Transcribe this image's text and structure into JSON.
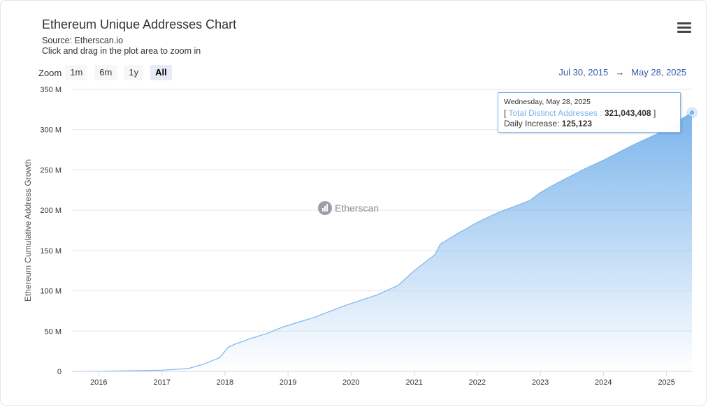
{
  "header": {
    "title": "Ethereum Unique Addresses Chart",
    "source": "Source: Etherscan.io",
    "hint": "Click and drag in the plot area to zoom in"
  },
  "menu_icon": "hamburger-menu-icon",
  "zoom": {
    "label": "Zoom",
    "buttons": [
      "1m",
      "6m",
      "1y",
      "All"
    ],
    "active": "All"
  },
  "range": {
    "from": "Jul 30, 2015",
    "arrow": "→",
    "to": "May 28, 2025"
  },
  "watermark": {
    "text": "Etherscan",
    "icon": "etherscan-logo-icon"
  },
  "tooltip": {
    "date": "Wednesday, May 28, 2025",
    "open_bracket": "[",
    "series_label": "Total Distinct Addresses :",
    "value": "321,043,408",
    "close_bracket": "]",
    "daily_label": "Daily Increase:",
    "daily_value": "125,123"
  },
  "colors": {
    "area_top": "#7cb5ec",
    "line": "#7cb5ec",
    "grid": "#e6e6e6",
    "range_text": "#335cad"
  },
  "chart_data": {
    "type": "area",
    "ylabel": "Ethereum Cumulative Address Growth",
    "ylim": [
      0,
      350000000
    ],
    "yticks": [
      0,
      50000000,
      100000000,
      150000000,
      200000000,
      250000000,
      300000000,
      350000000
    ],
    "ytick_labels": [
      "0",
      "50 M",
      "100 M",
      "150 M",
      "200 M",
      "250 M",
      "300 M",
      "350 M"
    ],
    "xlim": [
      "2015-07-30",
      "2025-05-28"
    ],
    "xtick_labels": [
      "2016",
      "2017",
      "2018",
      "2019",
      "2020",
      "2021",
      "2022",
      "2023",
      "2024",
      "2025"
    ],
    "grid": true,
    "series": [
      {
        "name": "Total Distinct Addresses",
        "x": [
          "2015-07-30",
          "2016-01-01",
          "2016-07-01",
          "2017-01-01",
          "2017-06-01",
          "2017-09-01",
          "2017-12-01",
          "2018-01-01",
          "2018-01-20",
          "2018-03-01",
          "2018-06-01",
          "2018-09-01",
          "2018-12-01",
          "2019-06-01",
          "2019-12-01",
          "2020-06-01",
          "2020-10-01",
          "2021-01-01",
          "2021-05-01",
          "2021-06-01",
          "2021-09-01",
          "2022-01-01",
          "2022-05-01",
          "2022-09-01",
          "2022-11-01",
          "2023-01-01",
          "2023-04-01",
          "2023-07-01",
          "2023-10-01",
          "2024-01-01",
          "2024-04-01",
          "2024-07-01",
          "2024-10-01",
          "2025-01-01",
          "2025-03-01",
          "2025-05-28"
        ],
        "y": [
          10000,
          300000,
          800000,
          1500000,
          3500000,
          9000000,
          17000000,
          25000000,
          30000000,
          34000000,
          41000000,
          47000000,
          55000000,
          67000000,
          82000000,
          95000000,
          107000000,
          125000000,
          145000000,
          158000000,
          170000000,
          185000000,
          197000000,
          207000000,
          212000000,
          222000000,
          233000000,
          243000000,
          253000000,
          262000000,
          272000000,
          282000000,
          291000000,
          300000000,
          310000000,
          321043408
        ],
        "daily_increase_last": 125123
      }
    ]
  }
}
